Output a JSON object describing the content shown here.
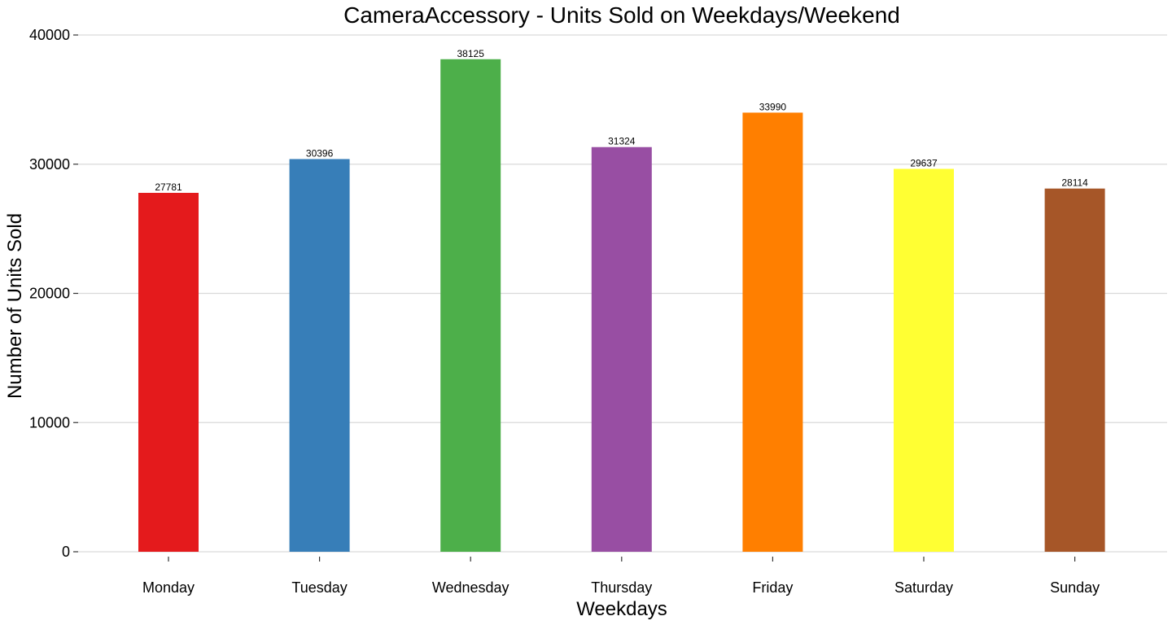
{
  "chart_data": {
    "type": "bar",
    "title": "CameraAccessory - Units Sold on Weekdays/Weekend",
    "xlabel": "Weekdays",
    "ylabel": "Number of Units Sold",
    "categories": [
      "Monday",
      "Tuesday",
      "Wednesday",
      "Thursday",
      "Friday",
      "Saturday",
      "Sunday"
    ],
    "values": [
      27781,
      30396,
      38125,
      31324,
      33990,
      29637,
      28114
    ],
    "data_labels": [
      "27781",
      "30396",
      "38125",
      "31324",
      "33990",
      "29637",
      "28114"
    ],
    "colors": [
      "#E41A1C",
      "#377EB8",
      "#4DAF4A",
      "#984EA3",
      "#FF7F00",
      "#FFFF33",
      "#A65628"
    ],
    "ylim": [
      0,
      40000
    ],
    "yticks": [
      0,
      10000,
      20000,
      30000,
      40000
    ],
    "ytick_labels": [
      "0",
      "10000",
      "20000",
      "30000",
      "40000"
    ],
    "grid": "horizontal",
    "legend": "none"
  }
}
